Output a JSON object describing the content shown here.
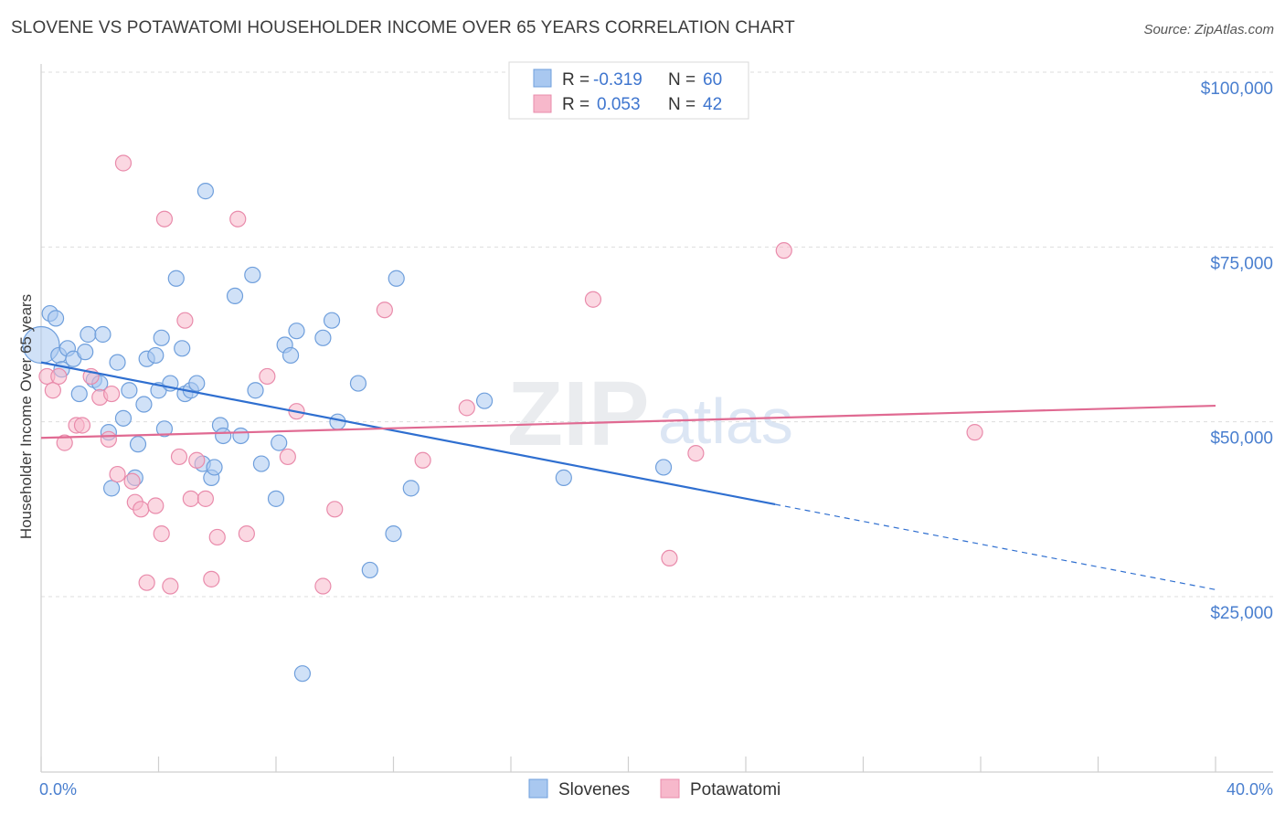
{
  "header": {
    "title": "SLOVENE VS POTAWATOMI HOUSEHOLDER INCOME OVER 65 YEARS CORRELATION CHART",
    "source": "Source: ZipAtlas.com"
  },
  "watermark": {
    "zip": "ZIP",
    "atlas": "atlas"
  },
  "legend_top": [
    {
      "r_label": "R =",
      "r_value": "-0.319",
      "n_label": "N =",
      "n_value": "60",
      "color": "#a9c8f0"
    },
    {
      "r_label": "R =",
      "r_value": "0.053",
      "n_label": "N =",
      "n_value": "42",
      "color": "#f7b8cb"
    }
  ],
  "chart_data": {
    "type": "scatter",
    "title": "SLOVENE VS POTAWATOMI HOUSEHOLDER INCOME OVER 65 YEARS CORRELATION CHART",
    "xlabel": "",
    "ylabel": "Householder Income Over 65 years",
    "xlim": [
      0,
      40
    ],
    "ylim": [
      0,
      105000
    ],
    "x_tick_labels": [
      "0.0%",
      "40.0%"
    ],
    "y_ticks": [
      25000,
      50000,
      75000,
      100000
    ],
    "y_tick_labels": [
      "$25,000",
      "$50,000",
      "$75,000",
      "$100,000"
    ],
    "grid": "horizontal dashed",
    "legend_placement": "bottom-center",
    "series": [
      {
        "name": "Slovenes",
        "color": "#a9c8f0",
        "stroke": "#6f9fdc",
        "trend": {
          "x": [
            0,
            25
          ],
          "y": [
            58500,
            38200
          ],
          "dashed_to": [
            40,
            26000
          ],
          "color": "#2f6fd0"
        },
        "points": [
          [
            0.0,
            61000
          ],
          [
            0.3,
            65500
          ],
          [
            0.5,
            64800
          ],
          [
            0.6,
            59500
          ],
          [
            0.7,
            57500
          ],
          [
            0.9,
            60500
          ],
          [
            1.1,
            59000
          ],
          [
            1.3,
            54000
          ],
          [
            1.5,
            60000
          ],
          [
            1.6,
            62500
          ],
          [
            1.8,
            56000
          ],
          [
            2.0,
            55500
          ],
          [
            2.1,
            62500
          ],
          [
            2.3,
            48500
          ],
          [
            2.4,
            40500
          ],
          [
            2.6,
            58500
          ],
          [
            2.8,
            50500
          ],
          [
            3.0,
            54500
          ],
          [
            3.2,
            42000
          ],
          [
            3.3,
            46800
          ],
          [
            3.5,
            52500
          ],
          [
            3.6,
            59000
          ],
          [
            3.9,
            59500
          ],
          [
            4.0,
            54500
          ],
          [
            4.1,
            62000
          ],
          [
            4.2,
            49000
          ],
          [
            4.4,
            55500
          ],
          [
            4.6,
            70500
          ],
          [
            4.8,
            60500
          ],
          [
            4.9,
            54000
          ],
          [
            5.1,
            54500
          ],
          [
            5.3,
            55500
          ],
          [
            5.5,
            44000
          ],
          [
            5.6,
            83000
          ],
          [
            5.8,
            42000
          ],
          [
            5.9,
            43500
          ],
          [
            6.1,
            49500
          ],
          [
            6.2,
            48000
          ],
          [
            6.6,
            68000
          ],
          [
            6.8,
            48000
          ],
          [
            7.2,
            71000
          ],
          [
            7.3,
            54500
          ],
          [
            7.5,
            44000
          ],
          [
            8.0,
            39000
          ],
          [
            8.1,
            47000
          ],
          [
            8.3,
            61000
          ],
          [
            8.5,
            59500
          ],
          [
            8.7,
            63000
          ],
          [
            8.9,
            14000
          ],
          [
            9.6,
            62000
          ],
          [
            9.9,
            64500
          ],
          [
            10.1,
            50000
          ],
          [
            10.8,
            55500
          ],
          [
            11.2,
            28800
          ],
          [
            12.0,
            34000
          ],
          [
            12.1,
            70500
          ],
          [
            12.6,
            40500
          ],
          [
            15.1,
            53000
          ],
          [
            17.8,
            42000
          ],
          [
            21.2,
            43500
          ]
        ]
      },
      {
        "name": "Potawatomi",
        "color": "#f7b8cb",
        "stroke": "#e98bab",
        "trend": {
          "x": [
            0,
            40
          ],
          "y": [
            47700,
            52300
          ],
          "color": "#e06a92"
        },
        "points": [
          [
            0.2,
            56500
          ],
          [
            0.4,
            54500
          ],
          [
            0.6,
            56500
          ],
          [
            0.8,
            47000
          ],
          [
            1.2,
            49500
          ],
          [
            1.4,
            49500
          ],
          [
            1.7,
            56500
          ],
          [
            2.0,
            53500
          ],
          [
            2.3,
            47500
          ],
          [
            2.4,
            54000
          ],
          [
            2.6,
            42500
          ],
          [
            2.8,
            87000
          ],
          [
            3.1,
            41500
          ],
          [
            3.2,
            38500
          ],
          [
            3.4,
            37500
          ],
          [
            3.6,
            27000
          ],
          [
            3.9,
            38000
          ],
          [
            4.1,
            34000
          ],
          [
            4.2,
            79000
          ],
          [
            4.4,
            26500
          ],
          [
            4.7,
            45000
          ],
          [
            4.9,
            64500
          ],
          [
            5.1,
            39000
          ],
          [
            5.3,
            44500
          ],
          [
            5.6,
            39000
          ],
          [
            5.8,
            27500
          ],
          [
            6.0,
            33500
          ],
          [
            6.7,
            79000
          ],
          [
            7.0,
            34000
          ],
          [
            7.7,
            56500
          ],
          [
            8.4,
            45000
          ],
          [
            8.7,
            51500
          ],
          [
            9.6,
            26500
          ],
          [
            10.0,
            37500
          ],
          [
            11.7,
            66000
          ],
          [
            13.0,
            44500
          ],
          [
            18.8,
            67500
          ],
          [
            21.4,
            30500
          ],
          [
            22.3,
            45500
          ],
          [
            25.3,
            74500
          ],
          [
            31.8,
            48500
          ],
          [
            14.5,
            52000
          ]
        ]
      }
    ]
  },
  "legend_bottom": {
    "items": [
      {
        "label": "Slovenes",
        "color": "#a9c8f0",
        "stroke": "#6f9fdc"
      },
      {
        "label": "Potawatomi",
        "color": "#f7b8cb",
        "stroke": "#e98bab"
      }
    ]
  }
}
